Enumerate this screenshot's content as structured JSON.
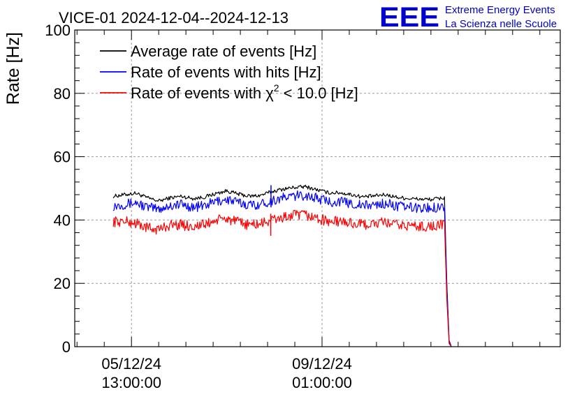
{
  "chart_data": {
    "type": "line",
    "title": "VICE-01 2024-12-04--2024-12-13",
    "xlabel": "",
    "ylabel": "Rate [Hz]",
    "ylim": [
      0,
      100
    ],
    "yticks": [
      0,
      20,
      40,
      60,
      80,
      100
    ],
    "x_unit": "hours since 2024-12-04 00:00:00",
    "xlim": [
      12.0,
      226.0
    ],
    "xticks": [
      {
        "x": 37.0,
        "date": "05/12/24",
        "time": "13:00:00"
      },
      {
        "x": 121.0,
        "date": "09/12/24",
        "time": "01:00:00"
      }
    ],
    "grid": true,
    "legend_position": "top-left",
    "series": [
      {
        "name": "Average rate of events [Hz]",
        "color": "#000000",
        "x": [
          29.0,
          34.0,
          39.0,
          44.0,
          49.0,
          54.0,
          59.0,
          64.0,
          69.0,
          74.0,
          79.0,
          84.0,
          89.0,
          94.0,
          99.0,
          104.0,
          109.0,
          114.0,
          119.0,
          124.0,
          129.0,
          134.0,
          139.0,
          144.0,
          149.0,
          154.0,
          159.0,
          164.0,
          169.0,
          175.0,
          176.0,
          177.0,
          178.0
        ],
        "y": [
          47.5,
          48.0,
          48.5,
          47.0,
          46.0,
          47.0,
          47.5,
          46.8,
          47.2,
          48.3,
          49.2,
          48.2,
          47.5,
          47.8,
          49.0,
          49.8,
          50.3,
          50.5,
          49.5,
          48.6,
          48.6,
          48.0,
          47.3,
          47.6,
          48.0,
          47.2,
          46.8,
          46.6,
          46.5,
          47.0,
          20.0,
          2.0,
          0.0
        ]
      },
      {
        "name": "Rate of events with hits [Hz]",
        "color": "#0000ff",
        "x": [
          29.0,
          34.0,
          39.0,
          44.0,
          49.0,
          54.0,
          59.0,
          64.0,
          69.0,
          74.0,
          79.0,
          84.0,
          89.0,
          94.0,
          99.0,
          104.0,
          109.0,
          114.0,
          119.0,
          124.0,
          129.0,
          134.0,
          139.0,
          144.0,
          149.0,
          154.0,
          159.0,
          164.0,
          169.0,
          175.0,
          176.0,
          177.0,
          178.0
        ],
        "y": [
          44.5,
          45.0,
          45.5,
          44.0,
          43.5,
          44.5,
          45.0,
          44.0,
          44.5,
          45.8,
          46.5,
          45.5,
          44.8,
          45.0,
          46.2,
          47.0,
          47.6,
          47.8,
          46.8,
          45.8,
          45.8,
          45.2,
          44.5,
          44.8,
          45.2,
          44.4,
          44.0,
          43.8,
          43.8,
          44.5,
          19.0,
          1.5,
          0.0
        ]
      },
      {
        "name": "Rate of events with χ² < 10.0 [Hz]",
        "color": "#ff0000",
        "x": [
          29.0,
          34.0,
          39.0,
          44.0,
          49.0,
          54.0,
          59.0,
          64.0,
          69.0,
          74.0,
          79.0,
          84.0,
          89.0,
          94.0,
          99.0,
          104.0,
          109.0,
          114.0,
          119.0,
          124.0,
          129.0,
          134.0,
          139.0,
          144.0,
          149.0,
          154.0,
          159.0,
          164.0,
          169.0,
          175.0,
          176.0,
          177.0,
          178.0
        ],
        "y": [
          39.5,
          39.5,
          39.0,
          37.5,
          37.0,
          38.5,
          38.5,
          38.0,
          38.5,
          39.8,
          40.5,
          39.2,
          38.5,
          38.8,
          40.0,
          40.8,
          41.5,
          41.5,
          40.5,
          39.5,
          39.5,
          39.0,
          38.5,
          38.8,
          39.2,
          38.4,
          38.2,
          38.0,
          38.0,
          38.5,
          15.0,
          1.0,
          0.0
        ]
      }
    ],
    "legend": [
      {
        "label": "Average rate of events [Hz]",
        "color": "#000000"
      },
      {
        "label": "Rate of events with hits [Hz]",
        "color": "#0000ff"
      },
      {
        "label": "Rate of events with χ",
        "superscript": "2",
        "label_suffix": " < 10.0 [Hz]",
        "color": "#ff0000"
      }
    ]
  },
  "logo": {
    "text": "EEE",
    "line1": "Extreme Energy Events",
    "line2": "La Scienza nelle Scuole",
    "color": "#0000cc"
  }
}
